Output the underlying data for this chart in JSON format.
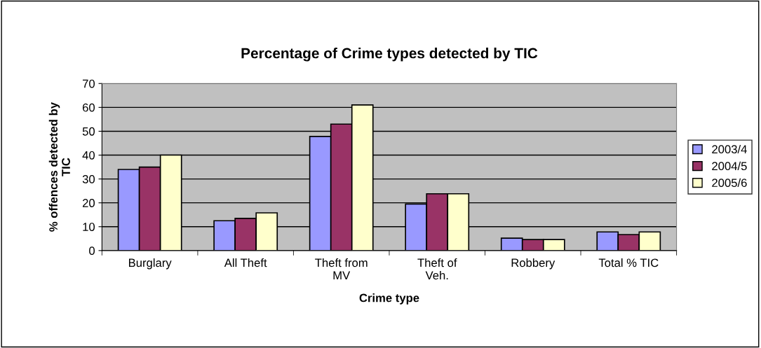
{
  "chart_data": {
    "type": "bar",
    "title": "Percentage of Crime types detected by TIC",
    "xlabel": "Crime type",
    "ylabel": "% offences detected by\nTIC",
    "categories": [
      "Burglary",
      "All Theft",
      "Theft from\nMV",
      "Theft of\nVeh.",
      "Robbery",
      "Total % TIC"
    ],
    "series": [
      {
        "name": "2003/4",
        "color": "#9999ff",
        "values": [
          34,
          12.5,
          47.8,
          19.5,
          5.2,
          7.8
        ]
      },
      {
        "name": "2004/5",
        "color": "#993366",
        "values": [
          35,
          13.5,
          53,
          23.8,
          4.6,
          6.7
        ]
      },
      {
        "name": "2005/6",
        "color": "#ffffcc",
        "values": [
          40,
          15.8,
          61,
          23.8,
          4.6,
          7.8
        ]
      }
    ],
    "ylim": [
      0,
      70
    ],
    "yticks": [
      0,
      10,
      20,
      30,
      40,
      50,
      60,
      70
    ],
    "grid": "y",
    "legend": "right"
  }
}
